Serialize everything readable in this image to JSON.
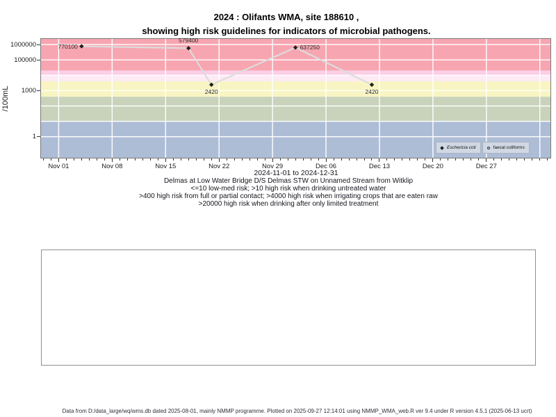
{
  "title": {
    "line1": "2024 : Olifants WMA, site 188610 ,",
    "line2": "showing high risk guidelines for indicators of microbial pathogens."
  },
  "chart_data": {
    "type": "line",
    "y_scale": "log10",
    "ylabel": "/100mL",
    "ylim": [
      0.04,
      2300000
    ],
    "y_ticks": [
      1,
      1000,
      100000,
      1000000
    ],
    "x_ticks": [
      {
        "label": "Nov 01",
        "day": 0
      },
      {
        "label": "Nov 08",
        "day": 7
      },
      {
        "label": "Nov 15",
        "day": 14
      },
      {
        "label": "Nov 22",
        "day": 21
      },
      {
        "label": "Nov 29",
        "day": 28
      },
      {
        "label": "Dec 06",
        "day": 35
      },
      {
        "label": "Dec 13",
        "day": 42
      },
      {
        "label": "Dec 20",
        "day": 49
      },
      {
        "label": "Dec 27",
        "day": 56
      }
    ],
    "x_range_label": "2024-11-01 to 2024-12-31",
    "grid": {
      "color": "#ffffff"
    },
    "risk_bands": [
      {
        "from": 20000,
        "to": "top",
        "color": "#f7a6b1"
      },
      {
        "from": 10000,
        "to": 20000,
        "color": "#fbcfe6"
      },
      {
        "from": 4000,
        "to": 10000,
        "color": "#fdeaf4"
      },
      {
        "from": 400,
        "to": 4000,
        "color": "#f8f5c3"
      },
      {
        "from": 10,
        "to": 400,
        "color": "#c9d2ba"
      },
      {
        "from": "bottom",
        "to": 10,
        "color": "#aebdd6"
      }
    ],
    "series": [
      {
        "name": "Eschericia coli",
        "marker": "filled-diamond",
        "marker_color": "#1f1f1f",
        "line_color": "#dcdcdc",
        "points": [
          {
            "date": "Nov 04",
            "day": 3,
            "value": 770100,
            "label": "770100",
            "label_placement": "left"
          },
          {
            "date": "Nov 18",
            "day": 17,
            "value": 579400,
            "label": "579400",
            "label_placement": "above"
          },
          {
            "date": "Nov 21",
            "day": 20,
            "value": 2420,
            "label": "2420",
            "label_placement": "below"
          },
          {
            "date": "Dec 02",
            "day": 31,
            "value": 637250,
            "label": "637250",
            "label_placement": "right"
          },
          {
            "date": "Dec 12",
            "day": 41,
            "value": 2420,
            "label": "2420",
            "label_placement": "below"
          }
        ]
      },
      {
        "name": "faecal coliforms",
        "marker": "open-circle",
        "marker_color": "#333333",
        "points": []
      }
    ],
    "legend": {
      "position": "bottom-right",
      "background": "#cfd8e3",
      "items": [
        {
          "symbol": "filled-diamond",
          "label": "Eschericia coli",
          "italic": true
        },
        {
          "symbol": "open-circle",
          "label": "faecal coliforms",
          "italic": false
        }
      ]
    }
  },
  "caption": {
    "station": "Delmas at Low Water Bridge D/S Delmas STW on Unnamed Stream from Witklip",
    "guideline1": "<=10 low-med risk; >10 high risk when drinking untreated water",
    "guideline2": ">400 high risk from full or partial contact; >4000 high risk when irrigating crops that are eaten raw",
    "guideline3": ">20000 high risk when drinking after only limited treatment"
  },
  "footer": {
    "text": "Data from D:/data_large/wq/wms.db dated 2025-08-01, mainly NMMP programme. Plotted on 2025-09-27 12:14:01 using NMMP_WMA_web.R ver 9.4 under R version 4.5.1 (2025-06-13 ucrt)"
  }
}
